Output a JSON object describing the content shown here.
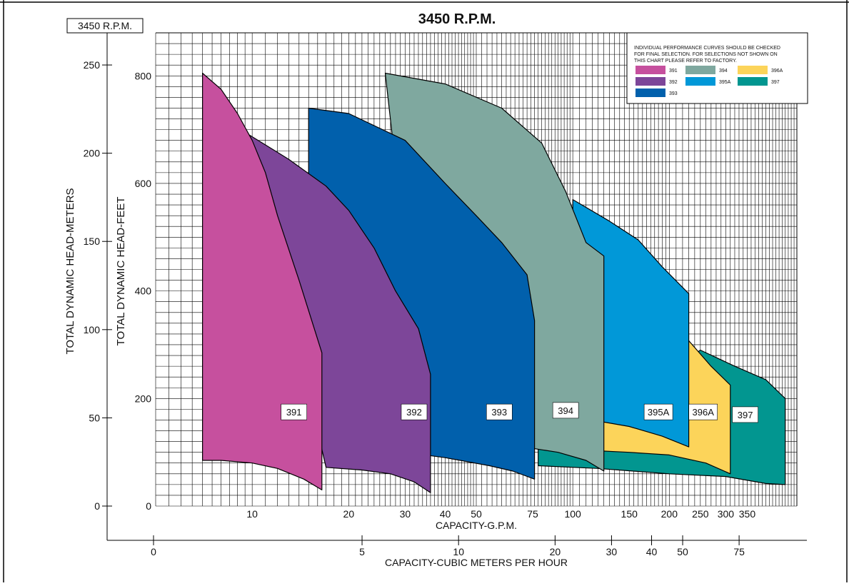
{
  "chart_data": {
    "type": "area",
    "title": "3450 R.P.M.",
    "corner_label": "3450 R.P.M.",
    "xlabel": "CAPACITY-G.P.M.",
    "x2label": "CAPACITY-CUBIC METERS PER HOUR",
    "ylabel": "TOTAL DYNAMIC HEAD-FEET",
    "y2label": "TOTAL DYNAMIC HEAD-METERS",
    "x_scale": "log",
    "xlim": [
      5,
      500
    ],
    "ylim": [
      0,
      880
    ],
    "grid": true,
    "x_ticks": [
      "10",
      "20",
      "30",
      "40",
      "50",
      "75",
      "100",
      "150",
      "200",
      "250",
      "300",
      "350"
    ],
    "x_tick_values": [
      10,
      20,
      30,
      40,
      50,
      75,
      100,
      150,
      200,
      250,
      300,
      350
    ],
    "y_ticks": [
      "0",
      "200",
      "400",
      "600",
      "800"
    ],
    "y_tick_values": [
      0,
      200,
      400,
      600,
      800
    ],
    "m_ticks": [
      "0",
      "50",
      "100",
      "150",
      "200",
      "250"
    ],
    "m_tick_values": [
      0,
      50,
      100,
      150,
      200,
      250
    ],
    "cmh_ticks": [
      "0",
      "5",
      "10",
      "20",
      "30",
      "40",
      "50",
      "75"
    ],
    "cmh_tick_values": [
      0,
      5,
      10,
      20,
      30,
      40,
      50,
      75
    ],
    "legend": {
      "position": "top-right",
      "note": "INDIVIDUAL PERFORMANCE CURVES SHOULD BE CHECKED FOR FINAL SELECTION. FOR SELECTIONS NOT SHOWN ON THIS CHART PLEASE REFER TO FACTORY.",
      "entries": [
        {
          "name": "391",
          "color": "#c6509e"
        },
        {
          "name": "394",
          "color": "#7fa89f"
        },
        {
          "name": "396A",
          "color": "#fcd45a"
        },
        {
          "name": "392",
          "color": "#7d4699"
        },
        {
          "name": "395A",
          "color": "#0198d8"
        },
        {
          "name": "397",
          "color": "#029690"
        },
        {
          "name": "393",
          "color": "#0160ac"
        }
      ]
    },
    "series": [
      {
        "name": "397",
        "color": "#029690",
        "label_point": [
          345,
          170
        ],
        "upper": [
          [
            78,
            110
          ],
          [
            120,
            165
          ],
          [
            180,
            225
          ],
          [
            250,
            290
          ],
          [
            320,
            260
          ],
          [
            400,
            235
          ],
          [
            460,
            200
          ]
        ],
        "lower": [
          [
            460,
            40
          ],
          [
            400,
            42
          ],
          [
            300,
            55
          ],
          [
            200,
            60
          ],
          [
            120,
            70
          ],
          [
            78,
            75
          ]
        ]
      },
      {
        "name": "396A",
        "color": "#fcd45a",
        "label_point": [
          255,
          175
        ],
        "upper": [
          [
            100,
            150
          ],
          [
            170,
            220
          ],
          [
            228,
            310
          ],
          [
            270,
            260
          ],
          [
            310,
            225
          ]
        ],
        "lower": [
          [
            310,
            60
          ],
          [
            260,
            80
          ],
          [
            200,
            95
          ],
          [
            150,
            100
          ],
          [
            100,
            105
          ]
        ]
      },
      {
        "name": "395A",
        "color": "#0198d8",
        "label_point": [
          185,
          175
        ],
        "upper": [
          [
            100,
            570
          ],
          [
            130,
            530
          ],
          [
            160,
            495
          ],
          [
            190,
            445
          ],
          [
            230,
            395
          ]
        ],
        "lower": [
          [
            230,
            110
          ],
          [
            190,
            130
          ],
          [
            150,
            148
          ],
          [
            115,
            160
          ],
          [
            100,
            162
          ]
        ]
      },
      {
        "name": "394",
        "color": "#7fa89f",
        "label_point": [
          95,
          178
        ],
        "upper": [
          [
            26,
            805
          ],
          [
            40,
            785
          ],
          [
            60,
            740
          ],
          [
            80,
            675
          ],
          [
            95,
            585
          ],
          [
            110,
            490
          ],
          [
            125,
            465
          ]
        ],
        "lower": [
          [
            125,
            65
          ],
          [
            110,
            85
          ],
          [
            90,
            100
          ],
          [
            70,
            110
          ],
          [
            50,
            115
          ],
          [
            35,
            120
          ]
        ]
      },
      {
        "name": "393",
        "color": "#0160ac",
        "label_point": [
          59,
          175
        ],
        "upper": [
          [
            15,
            740
          ],
          [
            20,
            730
          ],
          [
            30,
            680
          ],
          [
            40,
            600
          ],
          [
            50,
            540
          ],
          [
            60,
            490
          ],
          [
            72,
            430
          ],
          [
            76,
            345
          ]
        ],
        "lower": [
          [
            76,
            50
          ],
          [
            65,
            65
          ],
          [
            55,
            75
          ],
          [
            40,
            90
          ],
          [
            30,
            100
          ],
          [
            20,
            110
          ],
          [
            15,
            112
          ]
        ]
      },
      {
        "name": "392",
        "color": "#7d4699",
        "label_point": [
          32,
          175
        ],
        "upper": [
          [
            9.8,
            690
          ],
          [
            13,
            645
          ],
          [
            17,
            595
          ],
          [
            20,
            550
          ],
          [
            24,
            480
          ],
          [
            28,
            400
          ],
          [
            33,
            330
          ],
          [
            36,
            245
          ]
        ],
        "lower": [
          [
            36,
            25
          ],
          [
            32,
            45
          ],
          [
            27,
            60
          ],
          [
            22,
            67
          ],
          [
            17,
            72
          ]
        ]
      },
      {
        "name": "391",
        "color": "#c6509e",
        "label_point": [
          13.5,
          175
        ],
        "upper": [
          [
            7,
            805
          ],
          [
            8,
            775
          ],
          [
            9,
            730
          ],
          [
            10,
            680
          ],
          [
            11,
            620
          ],
          [
            12,
            540
          ],
          [
            14,
            420
          ],
          [
            16.5,
            285
          ]
        ],
        "lower": [
          [
            16.5,
            30
          ],
          [
            14.5,
            50
          ],
          [
            12,
            70
          ],
          [
            10,
            80
          ],
          [
            8,
            85
          ],
          [
            7,
            85
          ]
        ]
      }
    ]
  }
}
